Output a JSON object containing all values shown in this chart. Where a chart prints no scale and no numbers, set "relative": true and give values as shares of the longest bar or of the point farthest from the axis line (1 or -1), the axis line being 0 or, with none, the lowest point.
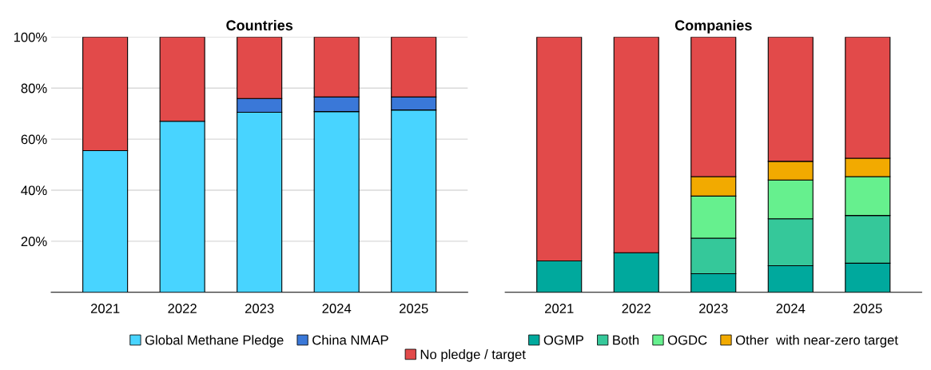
{
  "chart_data": [
    {
      "type": "bar",
      "title": "Countries",
      "categories": [
        "2021",
        "2022",
        "2023",
        "2024",
        "2025"
      ],
      "stacked": true,
      "ylim": [
        0,
        100
      ],
      "yticks": [
        {
          "value": 0,
          "label": null
        },
        {
          "value": 20,
          "label": "20%"
        },
        {
          "value": 40,
          "label": "40%"
        },
        {
          "value": 60,
          "label": "60%"
        },
        {
          "value": 80,
          "label": "80%"
        },
        {
          "value": 100,
          "label": "100%"
        }
      ],
      "grid": "y",
      "legend": "bottom",
      "series": [
        {
          "name": "Global Methane Pledge",
          "color": "#48d4ff",
          "values": [
            55.5,
            67,
            70.5,
            70.8,
            71.4
          ]
        },
        {
          "name": "China NMAP",
          "color": "#3a78d8",
          "values": [
            null,
            null,
            5.4,
            5.7,
            5.1
          ]
        },
        {
          "name": "No pledge / target",
          "color": "#e24a4a",
          "values": [
            44.5,
            33,
            24.1,
            23.5,
            23.5
          ]
        }
      ]
    },
    {
      "type": "bar",
      "title": "Companies",
      "categories": [
        "2021",
        "2022",
        "2023",
        "2024",
        "2025"
      ],
      "stacked": true,
      "relative": true,
      "legend": "bottom",
      "series": [
        {
          "name": "OGMP",
          "color": "#00a99d",
          "values": [
            0.123,
            0.155,
            0.073,
            0.104,
            0.114
          ]
        },
        {
          "name": "Both",
          "color": "#35c89a",
          "values": [
            null,
            null,
            0.139,
            0.184,
            0.187
          ]
        },
        {
          "name": "OGDC",
          "color": "#66f08e",
          "values": [
            null,
            null,
            0.165,
            0.152,
            0.152
          ]
        },
        {
          "name": "Other  with near-zero target",
          "color": "#f2aa00",
          "values": [
            null,
            null,
            0.076,
            0.073,
            0.072
          ]
        },
        {
          "name": "No pledge / target",
          "color": "#e24a4a",
          "values": [
            0.877,
            0.845,
            0.547,
            0.487,
            0.475
          ]
        }
      ]
    }
  ]
}
